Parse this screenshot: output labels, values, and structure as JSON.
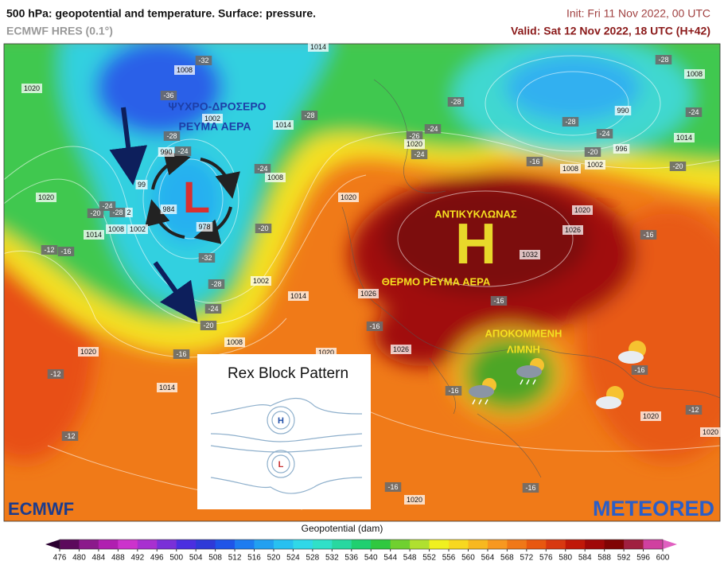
{
  "header": {
    "title": "500 hPa: geopotential and temperature. Surface: pressure.",
    "model": "ECMWF HRES (0.1°)",
    "init": "Init: Fri 11 Nov 2022, 00 UTC",
    "valid": "Valid: Sat 12 Nov 2022, 18 UTC (H+42)"
  },
  "map": {
    "annotations": [
      "ΨΥΧΡΟ-ΔΡΟΣΕΡΟ",
      "ΡΕΥΜΑ ΑΕΡΑ",
      "ΑΝΤΙΚΥΚΛΩΝΑΣ",
      "ΘΕΡΜΟ ΡΕΥΜΑ ΑΕΡΑ",
      "ΑΠΟΚΟΜΜΕΝΗ",
      "ΛΙΜΝΗ"
    ],
    "low": "L",
    "high": "H",
    "labels": [
      "1014",
      "1008",
      "-32",
      "-36",
      "1020",
      "1002",
      "1014",
      "-28",
      "-28",
      "990",
      "-24",
      "99",
      "984",
      "978",
      "1020",
      "-24",
      "-20",
      "-28",
      "2",
      "1008",
      "1002",
      "1014",
      "-24",
      "1008",
      "1020",
      "-20",
      "-32",
      "-12",
      "-16",
      "1002",
      "-28",
      "1014",
      "-24",
      "-20",
      "1008",
      "1020",
      "-16",
      "1020",
      "-12",
      "1014",
      "-12",
      "-28",
      "-24",
      "-26",
      "1020",
      "-24",
      "-28",
      "-24",
      "-20",
      "996",
      "1008",
      "1002",
      "-16",
      "990",
      "-28",
      "1008",
      "-24",
      "1014",
      "-20",
      "1020",
      "1026",
      "-16",
      "1032",
      "1026",
      "-16",
      "-16",
      "1026",
      "-16",
      "-16",
      "1020",
      "-12",
      "1020",
      "-16",
      "-16",
      "1020"
    ]
  },
  "inset": {
    "title": "Rex Block Pattern",
    "high": "H",
    "low": "L"
  },
  "logos": {
    "left": "ECMWF",
    "right": "METEORED"
  },
  "colorbar": {
    "title": "Geopotential (dam)",
    "ticks": [
      476,
      480,
      484,
      488,
      492,
      496,
      500,
      504,
      508,
      512,
      516,
      520,
      524,
      528,
      532,
      536,
      540,
      544,
      548,
      552,
      556,
      560,
      564,
      568,
      572,
      576,
      580,
      584,
      588,
      592,
      596,
      600
    ],
    "colors": [
      "#5c0a5c",
      "#8b1a8b",
      "#b01fb0",
      "#cc33cc",
      "#a830d0",
      "#7a30d8",
      "#4b2fe0",
      "#2f3ad8",
      "#1f55e8",
      "#1e7cf0",
      "#22a0f0",
      "#28c0f0",
      "#30d8e8",
      "#30e0c8",
      "#28d8a0",
      "#20d070",
      "#30c840",
      "#70d030",
      "#b0e030",
      "#f0f020",
      "#f8d820",
      "#f8b820",
      "#f89820",
      "#f07818",
      "#e85810",
      "#d83810",
      "#c01808",
      "#a00808",
      "#800404",
      "#a02040",
      "#d040a0"
    ]
  }
}
